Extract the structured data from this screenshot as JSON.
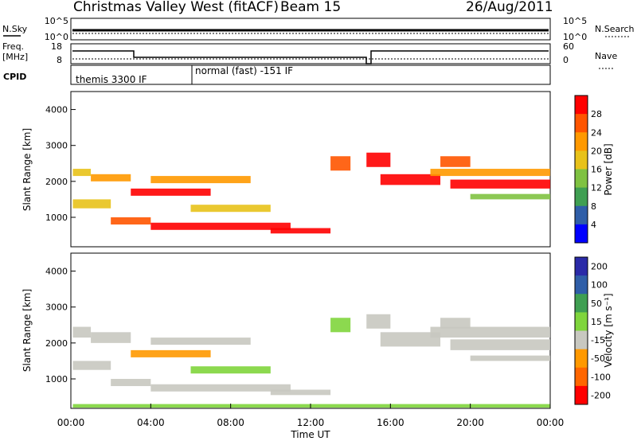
{
  "header": {
    "title": "Christmas Valley West (fitACF)",
    "beam": "Beam 15",
    "date": "26/Aug/2011"
  },
  "noise_panel": {
    "left_label": "N.Sky",
    "right_label": "N.Search",
    "ticks_left": [
      "10^5",
      "10^0"
    ],
    "ticks_right": [
      "10^5",
      "10^0"
    ]
  },
  "freq_panel": {
    "left_label_line1": "Freq.",
    "left_label_line2": "[MHz]",
    "right_label": "Nave",
    "ticks_left": [
      "18",
      "8"
    ],
    "ticks_right": [
      "60",
      "0"
    ]
  },
  "cpid_panel": {
    "label": "CPID",
    "modes": [
      "themis 3300 IF",
      "normal (fast) -151 IF"
    ]
  },
  "x_axis": {
    "label": "Time UT",
    "ticks": [
      "00:00",
      "04:00",
      "08:00",
      "12:00",
      "16:00",
      "20:00",
      "00:00"
    ]
  },
  "colors": {
    "power": [
      "#0000ff",
      "#2f5ea8",
      "#3f9f52",
      "#7fc241",
      "#e8c21a",
      "#ff9900",
      "#ff5500",
      "#ff0000"
    ],
    "velocity": [
      "#2a2aa8",
      "#2f5ea8",
      "#3f9f52",
      "#7fd53c",
      "#c8c8c0",
      "#ff9900",
      "#ff6600",
      "#ff0000"
    ]
  },
  "chart_data": [
    {
      "type": "heatmap",
      "panel": "power",
      "ylabel": "Slant Range [km]",
      "ylim": [
        180,
        4500
      ],
      "yticks": [
        1000,
        2000,
        3000,
        4000
      ],
      "xlim_hours": [
        0,
        24
      ],
      "colorbar": {
        "label": "Power [dB]",
        "ticks": [
          "4",
          "8",
          "12",
          "16",
          "20",
          "24",
          "28"
        ]
      },
      "bands": [
        {
          "t": [
            0.1,
            1.0
          ],
          "r": [
            2150,
            2350
          ],
          "level": 4
        },
        {
          "t": [
            1.0,
            3.0
          ],
          "r": [
            2000,
            2200
          ],
          "level": 5
        },
        {
          "t": [
            0.1,
            2.0
          ],
          "r": [
            1250,
            1500
          ],
          "level": 4
        },
        {
          "t": [
            2.0,
            4.0
          ],
          "r": [
            800,
            1000
          ],
          "level": 6
        },
        {
          "t": [
            3.0,
            7.0
          ],
          "r": [
            1600,
            1800
          ],
          "level": 7
        },
        {
          "t": [
            4.0,
            9.0
          ],
          "r": [
            1950,
            2150
          ],
          "level": 5
        },
        {
          "t": [
            6.0,
            10.0
          ],
          "r": [
            1150,
            1350
          ],
          "level": 4
        },
        {
          "t": [
            4.0,
            11.0
          ],
          "r": [
            650,
            850
          ],
          "level": 7
        },
        {
          "t": [
            10.0,
            13.0
          ],
          "r": [
            550,
            700
          ],
          "level": 7
        },
        {
          "t": [
            13.0,
            14.0
          ],
          "r": [
            2300,
            2700
          ],
          "level": 6
        },
        {
          "t": [
            14.8,
            16.0
          ],
          "r": [
            2400,
            2800
          ],
          "level": 7
        },
        {
          "t": [
            15.5,
            18.5
          ],
          "r": [
            1900,
            2200
          ],
          "level": 7
        },
        {
          "t": [
            18.5,
            20.0
          ],
          "r": [
            2400,
            2700
          ],
          "level": 6
        },
        {
          "t": [
            19.0,
            24.0
          ],
          "r": [
            1800,
            2050
          ],
          "level": 7
        },
        {
          "t": [
            18.0,
            24.0
          ],
          "r": [
            2150,
            2350
          ],
          "level": 5
        },
        {
          "t": [
            20.0,
            24.0
          ],
          "r": [
            1500,
            1650
          ],
          "level": 3
        }
      ]
    },
    {
      "type": "heatmap",
      "panel": "velocity",
      "ylabel": "Slant Range [km]",
      "ylim": [
        180,
        4500
      ],
      "yticks": [
        1000,
        2000,
        3000,
        4000
      ],
      "xlim_hours": [
        0,
        24
      ],
      "colorbar": {
        "label": "Velocity [m s⁻¹]",
        "ticks": [
          "200",
          "100",
          "50",
          "15",
          "-15",
          "-50",
          "-100",
          "-200"
        ]
      },
      "bands": [
        {
          "t": [
            0.1,
            1.0
          ],
          "r": [
            2150,
            2450
          ],
          "level": 4
        },
        {
          "t": [
            1.0,
            3.0
          ],
          "r": [
            2000,
            2300
          ],
          "level": 4
        },
        {
          "t": [
            0.1,
            2.0
          ],
          "r": [
            1250,
            1500
          ],
          "level": 4
        },
        {
          "t": [
            2.0,
            4.0
          ],
          "r": [
            800,
            1000
          ],
          "level": 4
        },
        {
          "t": [
            3.0,
            7.0
          ],
          "r": [
            1600,
            1800
          ],
          "level": 5
        },
        {
          "t": [
            4.0,
            9.0
          ],
          "r": [
            1950,
            2150
          ],
          "level": 4
        },
        {
          "t": [
            6.0,
            10.0
          ],
          "r": [
            1150,
            1350
          ],
          "level": 3
        },
        {
          "t": [
            4.0,
            11.0
          ],
          "r": [
            650,
            850
          ],
          "level": 4
        },
        {
          "t": [
            10.0,
            13.0
          ],
          "r": [
            550,
            700
          ],
          "level": 4
        },
        {
          "t": [
            13.0,
            14.0
          ],
          "r": [
            2300,
            2700
          ],
          "level": 3
        },
        {
          "t": [
            14.8,
            16.0
          ],
          "r": [
            2400,
            2800
          ],
          "level": 4
        },
        {
          "t": [
            15.5,
            18.5
          ],
          "r": [
            1900,
            2300
          ],
          "level": 4
        },
        {
          "t": [
            18.5,
            20.0
          ],
          "r": [
            2400,
            2700
          ],
          "level": 4
        },
        {
          "t": [
            19.0,
            24.0
          ],
          "r": [
            1800,
            2100
          ],
          "level": 4
        },
        {
          "t": [
            18.0,
            24.0
          ],
          "r": [
            2150,
            2450
          ],
          "level": 4
        },
        {
          "t": [
            20.0,
            24.0
          ],
          "r": [
            1500,
            1650
          ],
          "level": 4
        },
        {
          "t": [
            0.1,
            24.0
          ],
          "r": [
            200,
            300
          ],
          "level": 3
        }
      ]
    }
  ]
}
